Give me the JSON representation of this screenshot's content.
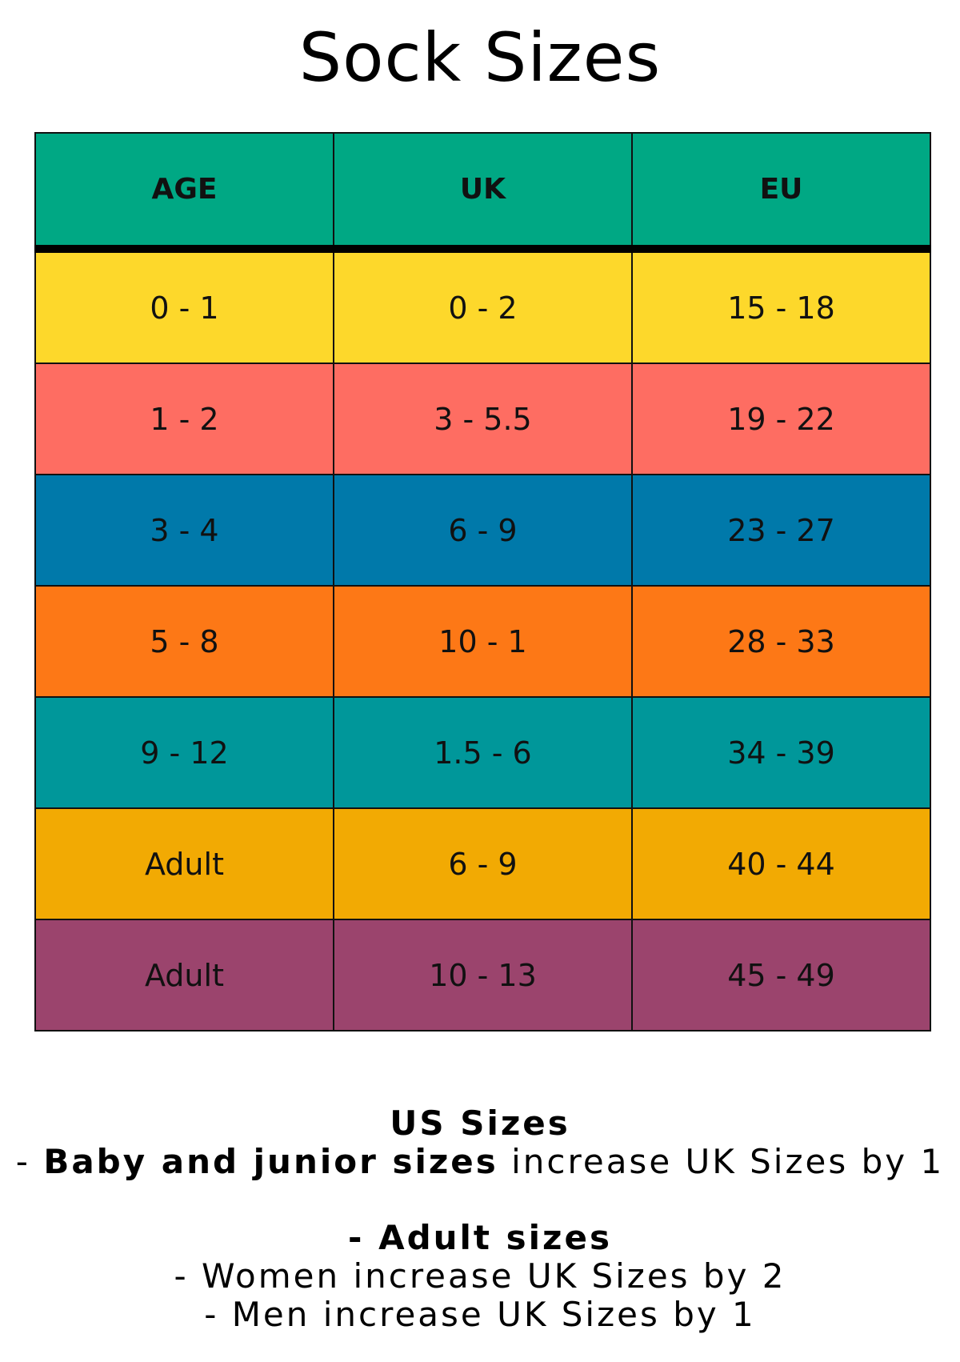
{
  "title": "Sock Sizes",
  "table": {
    "headers": [
      "AGE",
      "UK",
      "EU"
    ],
    "header_color": "#00a884",
    "rows": [
      {
        "cells": [
          "0 - 1",
          "0 - 2",
          "15 - 18"
        ],
        "color": "#fdd82b"
      },
      {
        "cells": [
          "1 - 2",
          "3 - 5.5",
          "19 - 22"
        ],
        "color": "#fe6d62"
      },
      {
        "cells": [
          "3 - 4",
          "6 - 9",
          "23 - 27"
        ],
        "color": "#0079aa"
      },
      {
        "cells": [
          "5 - 8",
          "10 - 1",
          "28 - 33"
        ],
        "color": "#fd7816"
      },
      {
        "cells": [
          "9 - 12",
          "1.5 - 6",
          "34 - 39"
        ],
        "color": "#00979a"
      },
      {
        "cells": [
          "Adult",
          "6 - 9",
          "40 - 44"
        ],
        "color": "#f2aa03"
      },
      {
        "cells": [
          "Adult",
          "10 - 13",
          "45 - 49"
        ],
        "color": "#9b446d"
      }
    ]
  },
  "notes": {
    "heading": "US Sizes",
    "baby_prefix": "- ",
    "baby_bold": "Baby and junior sizes",
    "baby_rest": " increase UK Sizes by 1",
    "adult_heading": "- Adult sizes",
    "women": "- Women increase UK Sizes by 2",
    "men": "- Men increase UK Sizes by 1"
  }
}
